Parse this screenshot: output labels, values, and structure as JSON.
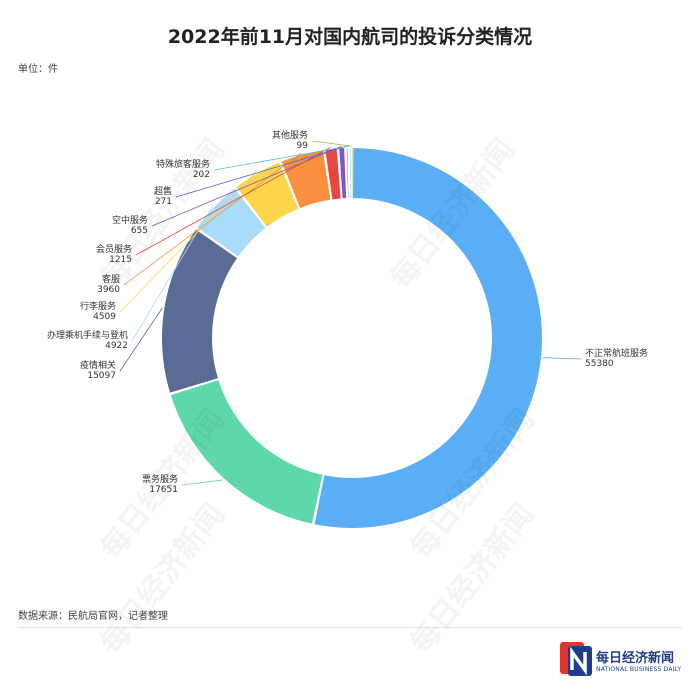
{
  "title": "2022年前11月对国内航司的投诉分类情况",
  "unit_label": "单位：件",
  "source": "数据来源：民航局官网，记者整理",
  "watermark_text": "每日经济新闻",
  "logo": {
    "name": "每日经济新闻",
    "subtitle": "NATIONAL BUSINESS DAILY",
    "colors": [
      "#e3342f",
      "#1f3d8f"
    ]
  },
  "chart_data": {
    "type": "pie",
    "variant": "donut",
    "title": "2022年前11月对国内航司的投诉分类情况",
    "unit": "件",
    "slices": [
      {
        "label": "不正常航班服务",
        "value": 55380,
        "color": "#5aaef5"
      },
      {
        "label": "票务服务",
        "value": 17651,
        "color": "#5fd8a9"
      },
      {
        "label": "疫情相关",
        "value": 15097,
        "color": "#5a6c96"
      },
      {
        "label": "办理乘机手续与登机",
        "value": 4922,
        "color": "#a9dcf9"
      },
      {
        "label": "行李服务",
        "value": 4509,
        "color": "#fbd54c"
      },
      {
        "label": "客服",
        "value": 3960,
        "color": "#f8903f"
      },
      {
        "label": "会员服务",
        "value": 1215,
        "color": "#e5483f"
      },
      {
        "label": "空中服务",
        "value": 655,
        "color": "#8453c6"
      },
      {
        "label": "超售",
        "value": 271,
        "color": "#3f6fd8"
      },
      {
        "label": "特殊旅客服务",
        "value": 202,
        "color": "#4ec2e0"
      },
      {
        "label": "其他服务",
        "value": 99,
        "color": "#9fbe3b"
      }
    ]
  }
}
